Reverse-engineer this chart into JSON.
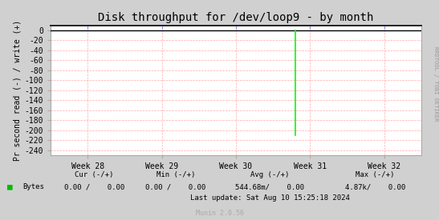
{
  "title": "Disk throughput for /dev/loop9 - by month",
  "ylabel": "Pr second read (-) / write (+)",
  "background_color": "#d0d0d0",
  "plot_bg_color": "#ffffff",
  "grid_color": "#ffaaaa",
  "xlim": [
    0,
    5
  ],
  "ylim": [
    -250,
    10
  ],
  "yticks": [
    0,
    -20,
    -40,
    -60,
    -80,
    -100,
    -120,
    -140,
    -160,
    -180,
    -200,
    -220,
    -240
  ],
  "xtick_labels": [
    "Week 28",
    "Week 29",
    "Week 30",
    "Week 31",
    "Week 32"
  ],
  "xtick_positions": [
    0.5,
    1.5,
    2.5,
    3.5,
    4.5
  ],
  "spike_x": 3.3,
  "spike_y_bottom": -210,
  "spike_color": "#00ff00",
  "line_color": "#000000",
  "right_watermark": "RRDTOOL / TOBI OETIKER",
  "legend_color": "#00bb00",
  "munin_label": "Munin 2.0.56",
  "title_fontsize": 10,
  "axis_fontsize": 7,
  "footer_fontsize": 6.5,
  "watermark_fontsize": 5,
  "border_color": "#aaaaaa",
  "spine_top_color": "#222222",
  "tick_color_x_top": "#8888ff",
  "tick_color_sides": "#aaaaaa"
}
